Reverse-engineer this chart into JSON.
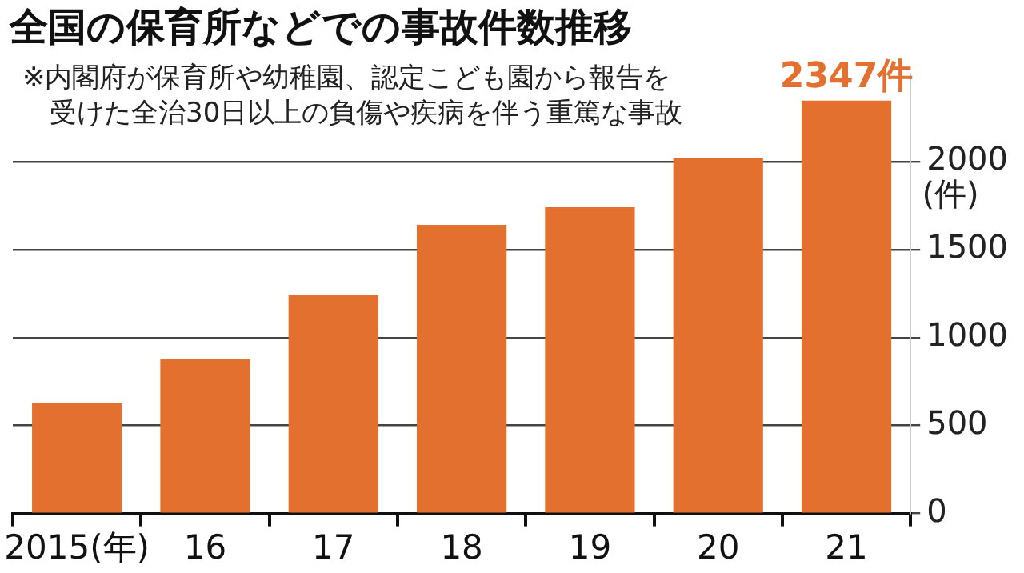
{
  "chart_data": {
    "type": "bar",
    "title": "全国の保育所などでの事故件数推移",
    "ylabel": "(件)",
    "annotations": [
      "※内閣府が保育所や幼稚園、認定こども園から報告を受けた全治30日以上の負傷や疾病を伴う重篤な事故"
    ],
    "categories": [
      "2015(年)",
      "16",
      "17",
      "18",
      "19",
      "20",
      "21"
    ],
    "values": [
      630,
      880,
      1240,
      1640,
      1740,
      2020,
      2347
    ],
    "value_labels": [
      null,
      null,
      null,
      null,
      null,
      null,
      "2347件"
    ],
    "color": "#e4702f",
    "ylim": [
      0,
      2500
    ],
    "yticks": [
      0,
      500,
      1000,
      1500,
      2000
    ],
    "grid": "y",
    "legend": false
  }
}
